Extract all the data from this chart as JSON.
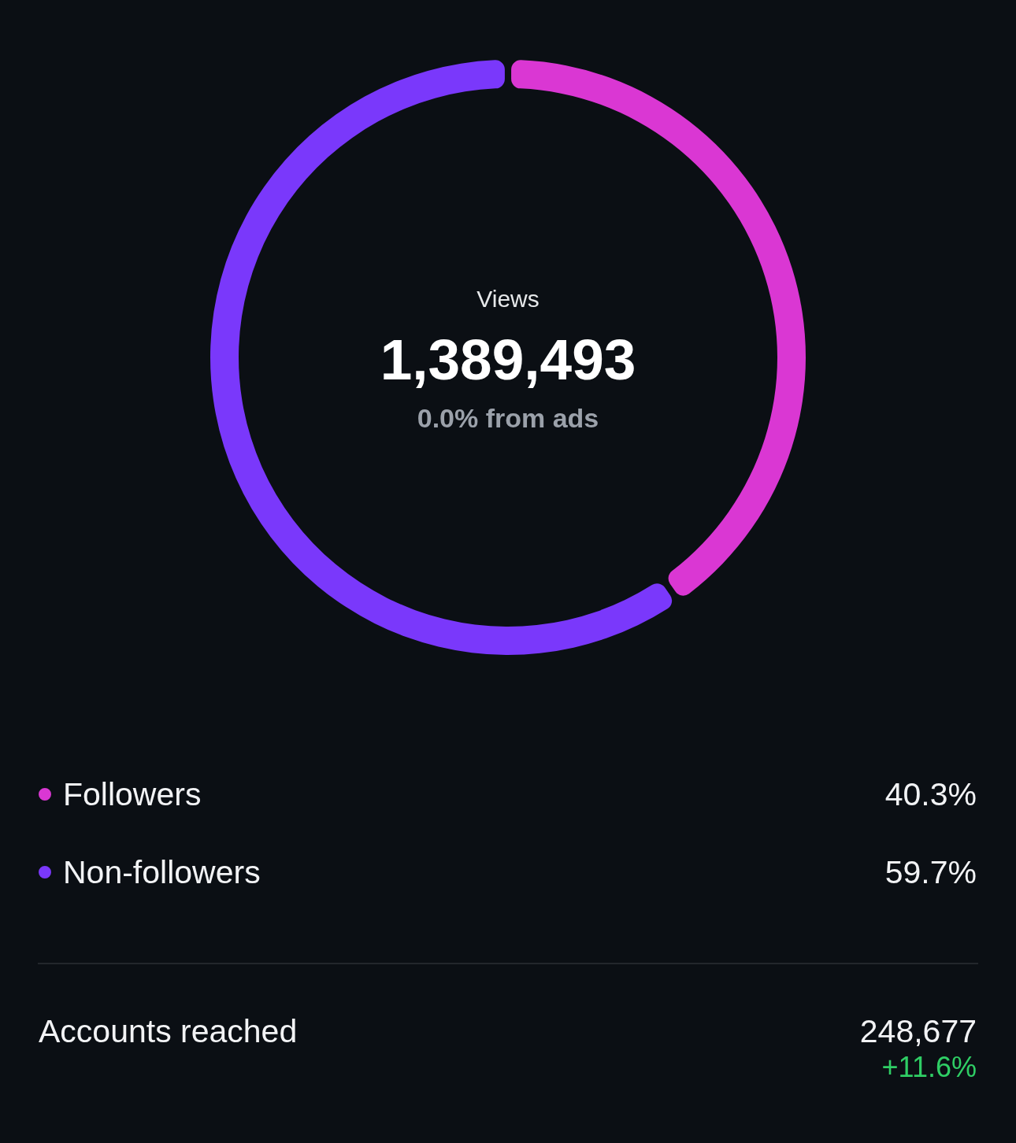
{
  "chart_data": [
    {
      "type": "donut",
      "title": "Views",
      "annotations": [
        "1,389,493",
        "0.0% from ads"
      ],
      "categories": [
        "Followers",
        "Non-followers"
      ],
      "values": [
        40.3,
        59.7
      ],
      "colors": [
        "#da37d3",
        "#7a38fb"
      ],
      "value_labels": [
        "40.3%",
        "59.7%"
      ],
      "legend": "bottom"
    },
    {
      "type": "other",
      "title": "Accounts reached",
      "annotations": [
        "248,677",
        "+11.6%"
      ]
    }
  ]
}
